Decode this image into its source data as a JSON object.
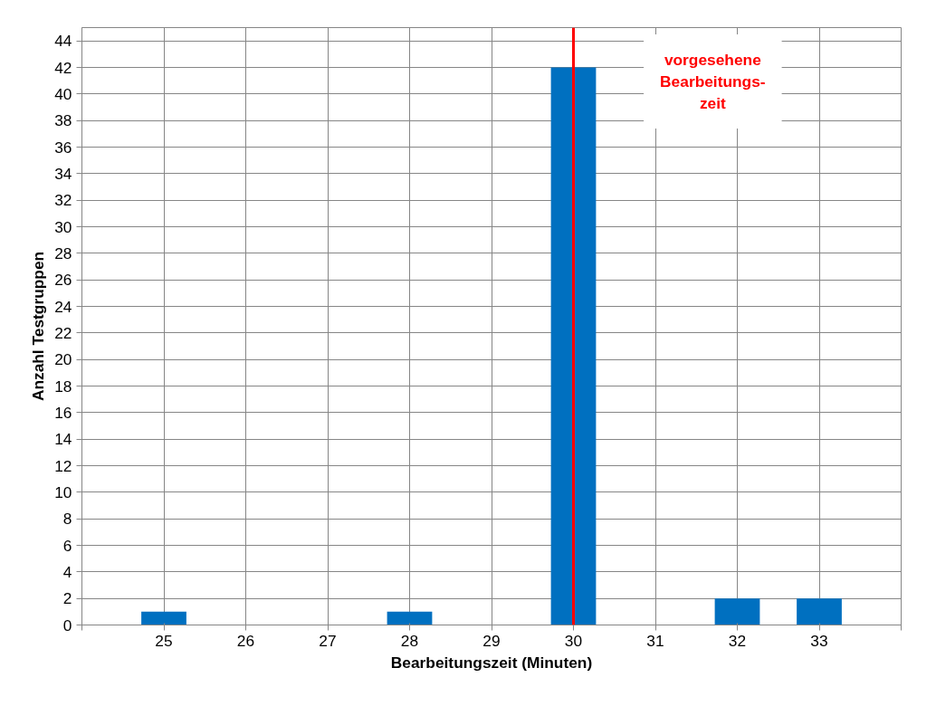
{
  "chart_data": {
    "type": "bar",
    "xlabel": "Bearbeitungszeit (Minuten)",
    "ylabel": "Anzahl Testgruppen",
    "x": [
      25,
      28,
      30,
      32,
      33
    ],
    "values": [
      1,
      1,
      42,
      2,
      2
    ],
    "color": "#0070c0",
    "xlim": [
      24,
      34
    ],
    "xticks": [
      {
        "value": 24,
        "label": null
      },
      25,
      26,
      27,
      28,
      29,
      30,
      31,
      32,
      33,
      {
        "value": 34,
        "label": null
      }
    ],
    "ylim": [
      0,
      45
    ],
    "yticks": [
      0,
      2,
      4,
      6,
      8,
      10,
      12,
      14,
      16,
      18,
      20,
      22,
      24,
      26,
      28,
      30,
      32,
      34,
      36,
      38,
      40,
      42,
      44
    ],
    "grid": true,
    "ref_lines": [
      {
        "axis": "x",
        "value": 30,
        "label": "vorgesehene\nBearbeitungs-\nzeit",
        "color": "#ff0000"
      }
    ]
  }
}
